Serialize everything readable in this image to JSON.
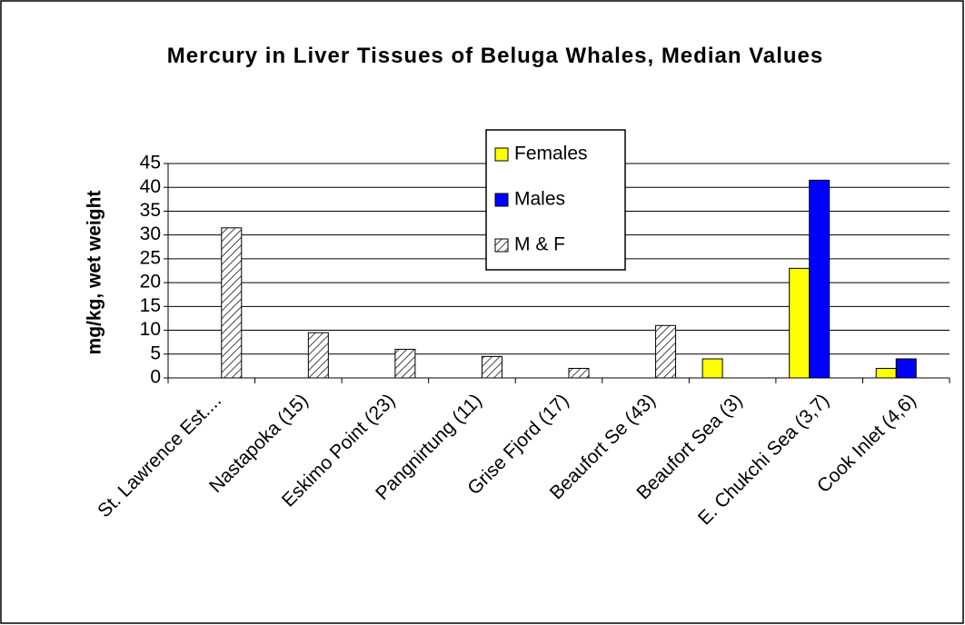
{
  "chart_data": {
    "type": "bar",
    "title": "Mercury in Liver Tissues of Beluga Whales, Median Values",
    "y_label": "mg/kg, wet weight",
    "categories": [
      "St. Lawrence Est....",
      "Nastapoka (15)",
      "Eskimo Point (23)",
      "Pangnirtung (11)",
      "Grise Fjord (17)",
      "Beaufort Se (43)",
      "Beaufort Sea (3)",
      "E. Chukchi Sea (3,7)",
      "Cook Inlet (4,6)"
    ],
    "series": [
      {
        "name": "Females",
        "color": "#ffff00",
        "values": [
          null,
          null,
          null,
          null,
          null,
          null,
          4,
          23,
          2
        ]
      },
      {
        "name": "Males",
        "color": "#0000ff",
        "values": [
          null,
          null,
          null,
          null,
          null,
          null,
          null,
          41.5,
          4
        ]
      },
      {
        "name": "M & F",
        "color": "#808080",
        "hatch": true,
        "values": [
          31.5,
          9.5,
          6,
          4.5,
          2,
          11,
          null,
          null,
          null
        ]
      }
    ],
    "ylim": [
      0,
      45
    ],
    "yticks": [
      0,
      5,
      10,
      15,
      20,
      25,
      30,
      35,
      40,
      45
    ],
    "grid": true
  }
}
